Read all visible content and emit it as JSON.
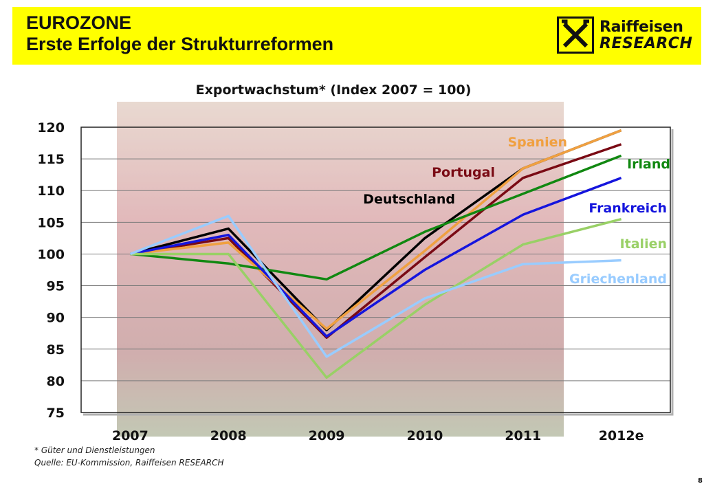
{
  "header": {
    "title_line1": "EUROZONE",
    "title_line2": "Erste Erfolge der Strukturreformen",
    "logo_line1": "Raiffeisen",
    "logo_line2": "RESEARCH"
  },
  "colors": {
    "header_bg": "#ffff00",
    "Deutschland": "#000000",
    "Portugal": "#7a0a14",
    "Spanien": "#f0a040",
    "Irland": "#118811",
    "Frankreich": "#1515dd",
    "Italien": "#99d066",
    "Griechenland": "#99ccff"
  },
  "chart_data": {
    "type": "line",
    "title": "Exportwachstum* (Index 2007 = 100)",
    "categories": [
      "2007",
      "2008",
      "2009",
      "2010",
      "2011",
      "2012e"
    ],
    "ylim": [
      75,
      120
    ],
    "yticks": [
      75,
      80,
      85,
      90,
      95,
      100,
      105,
      110,
      115,
      120
    ],
    "grid": true,
    "series": [
      {
        "name": "Deutschland",
        "color": "#000000",
        "values": [
          100,
          104,
          88,
          102.5,
          113.5,
          119.5
        ]
      },
      {
        "name": "Portugal",
        "color": "#7a0a14",
        "values": [
          100,
          102.5,
          86.8,
          99.5,
          112,
          117.3
        ]
      },
      {
        "name": "Spanien",
        "color": "#f0a040",
        "values": [
          100,
          101.8,
          88.2,
          100.5,
          113.5,
          119.5
        ]
      },
      {
        "name": "Irland",
        "color": "#118811",
        "values": [
          100,
          98.5,
          96,
          103.5,
          109.5,
          115.5
        ]
      },
      {
        "name": "Frankreich",
        "color": "#1515dd",
        "values": [
          100,
          103,
          87,
          97.5,
          106.2,
          112
        ]
      },
      {
        "name": "Italien",
        "color": "#99d066",
        "values": [
          100,
          100,
          80.5,
          92,
          101.5,
          105.5
        ]
      },
      {
        "name": "Griechenland",
        "color": "#99ccff",
        "values": [
          100,
          106,
          83.8,
          93,
          98.4,
          99
        ]
      }
    ]
  },
  "footnote": {
    "line1": "* Güter und Dienstleistungen",
    "line2": "Quelle: EU-Kommission, Raiffeisen RESEARCH"
  },
  "page_number": "8"
}
